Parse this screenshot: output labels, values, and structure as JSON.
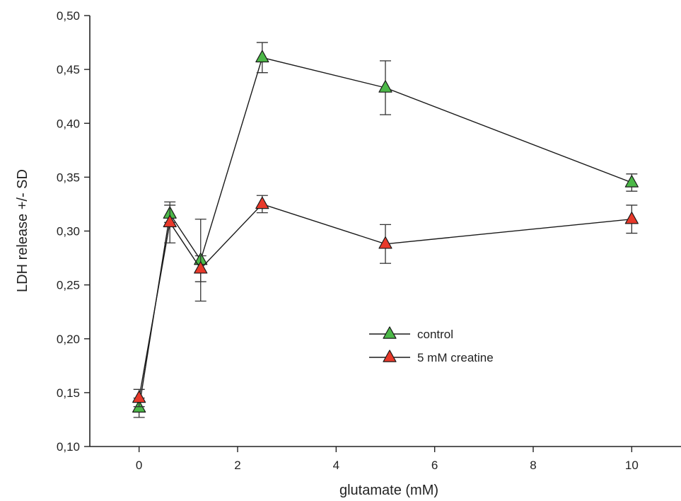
{
  "chart_data": {
    "type": "line",
    "xlabel": "glutamate (mM)",
    "ylabel": "LDH release +/- SD",
    "xlim": [
      -1,
      11
    ],
    "ylim": [
      0.1,
      0.5
    ],
    "xticks": [
      0,
      2,
      4,
      6,
      8,
      10
    ],
    "xtick_labels": [
      "0",
      "2",
      "4",
      "6",
      "8",
      "10"
    ],
    "yticks": [
      0.1,
      0.15,
      0.2,
      0.25,
      0.3,
      0.35,
      0.4,
      0.45,
      0.5
    ],
    "ytick_labels": [
      "0,10",
      "0,15",
      "0,20",
      "0,25",
      "0,30",
      "0,35",
      "0,40",
      "0,45",
      "0,50"
    ],
    "grid": false,
    "legend_position": "lower-right",
    "series": [
      {
        "name": "control",
        "color": "#4cb848",
        "x": [
          0,
          0.625,
          1.25,
          2.5,
          5,
          10
        ],
        "y": [
          0.136,
          0.316,
          0.273,
          0.461,
          0.433,
          0.345
        ],
        "err": [
          0.009,
          0.008,
          0.038,
          0.014,
          0.025,
          0.008
        ]
      },
      {
        "name": "5 mM creatine",
        "color": "#e8392a",
        "x": [
          0,
          0.625,
          1.25,
          2.5,
          5,
          10
        ],
        "y": [
          0.145,
          0.308,
          0.265,
          0.325,
          0.288,
          0.311
        ],
        "err": [
          0.008,
          0.019,
          0.012,
          0.008,
          0.018,
          0.013
        ]
      }
    ]
  }
}
